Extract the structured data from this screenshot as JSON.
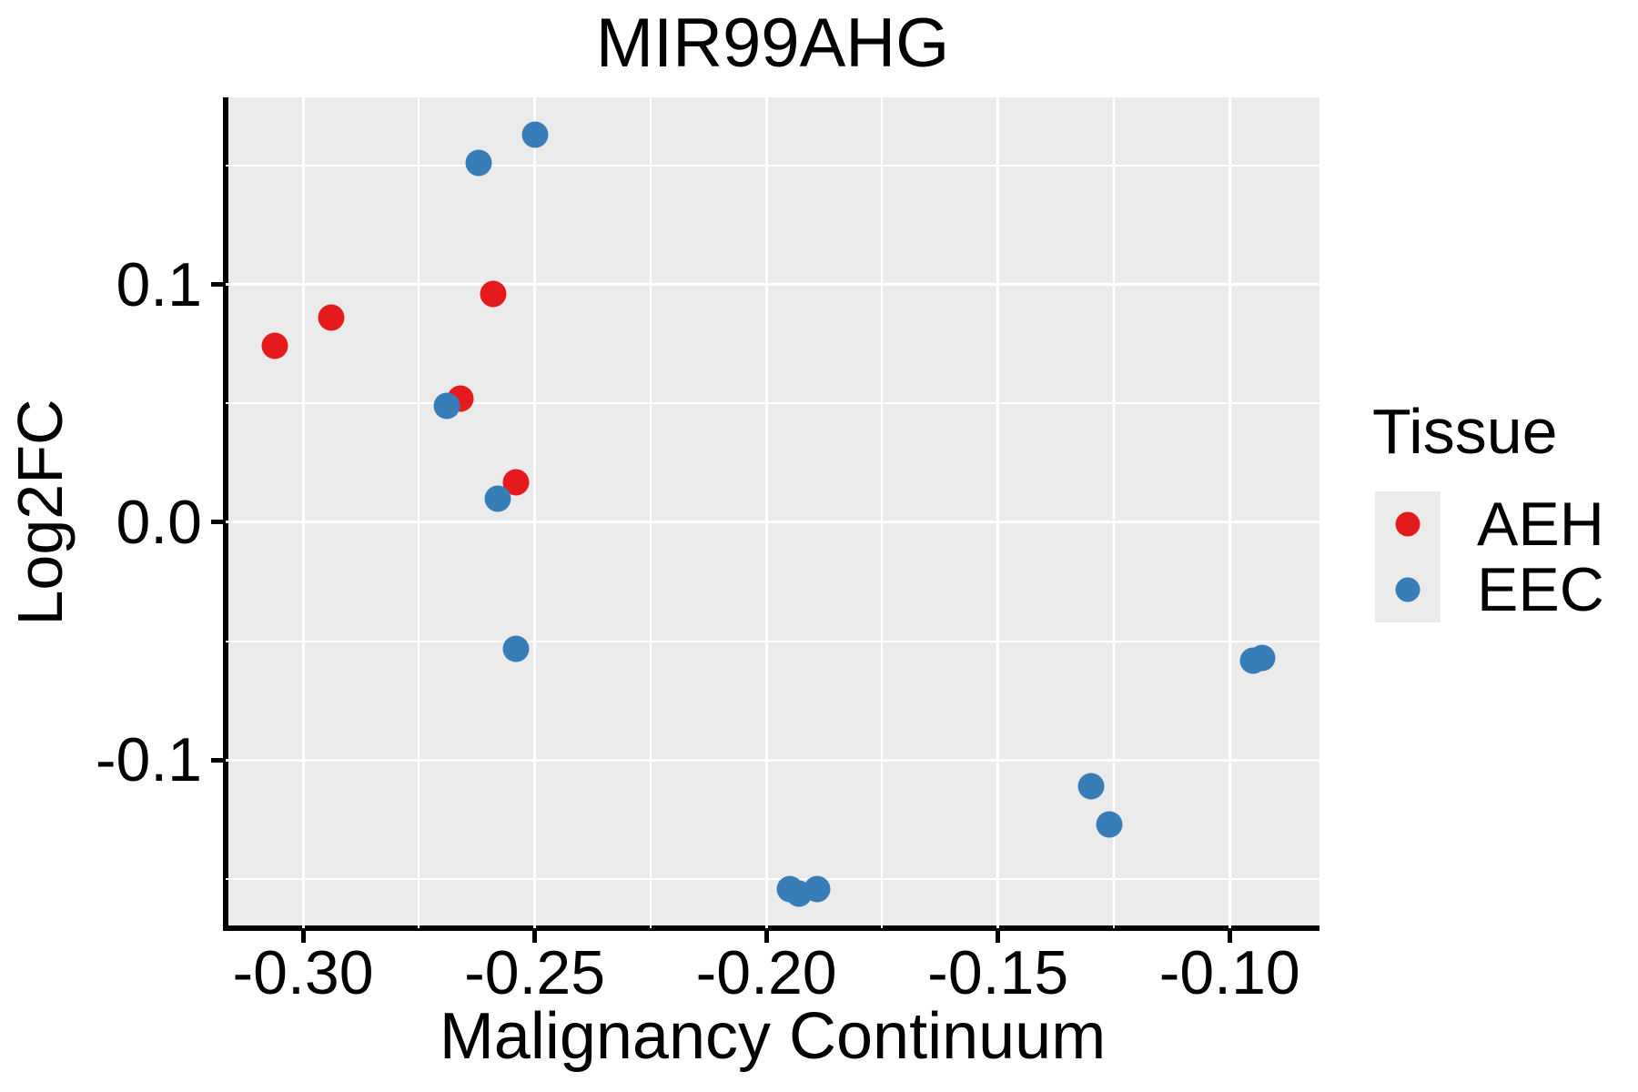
{
  "title": "MIR99AHG",
  "legend": {
    "title": "Tissue",
    "entries": [
      {
        "label": "AEH",
        "color": "#e41a1c"
      },
      {
        "label": "EEC",
        "color": "#377eb8"
      }
    ]
  },
  "colors": {
    "panel_background": "#ebebeb",
    "gridline": "#ffffff",
    "axis": "#000000",
    "aeh_red": "#e41a1c",
    "eec_blue": "#377eb8"
  },
  "chart_data": {
    "type": "scatter",
    "title": "MIR99AHG",
    "xlabel": "Malignancy Continuum",
    "ylabel": "Log2FC",
    "xlim": [
      -0.3167,
      -0.0806
    ],
    "ylim": [
      -0.1706,
      0.1786
    ],
    "grid": true,
    "legend_position": "right",
    "x_ticks": [
      -0.3,
      -0.25,
      -0.2,
      -0.15,
      -0.1
    ],
    "x_tick_labels": [
      "-0.30",
      "-0.25",
      "-0.20",
      "-0.15",
      "-0.10"
    ],
    "x_minor_ticks": [
      -0.275,
      -0.225,
      -0.175,
      -0.125
    ],
    "y_ticks": [
      0.1,
      0.0,
      -0.1
    ],
    "y_tick_labels": [
      "0.1",
      "0.0",
      "-0.1"
    ],
    "y_minor_ticks": [
      0.15,
      0.05,
      -0.05,
      -0.15
    ],
    "series": [
      {
        "name": "AEH",
        "color": "#e41a1c",
        "points": [
          [
            -0.306,
            0.074
          ],
          [
            -0.294,
            0.086
          ],
          [
            -0.266,
            0.052
          ],
          [
            -0.259,
            0.096
          ],
          [
            -0.254,
            0.017
          ]
        ]
      },
      {
        "name": "EEC",
        "color": "#377eb8",
        "points": [
          [
            -0.262,
            0.151
          ],
          [
            -0.25,
            0.163
          ],
          [
            -0.269,
            0.049
          ],
          [
            -0.258,
            0.01
          ],
          [
            -0.254,
            -0.053
          ],
          [
            -0.195,
            -0.154
          ],
          [
            -0.193,
            -0.156
          ],
          [
            -0.189,
            -0.154
          ],
          [
            -0.13,
            -0.111
          ],
          [
            -0.126,
            -0.127
          ],
          [
            -0.095,
            -0.058
          ],
          [
            -0.093,
            -0.057
          ]
        ]
      }
    ]
  }
}
